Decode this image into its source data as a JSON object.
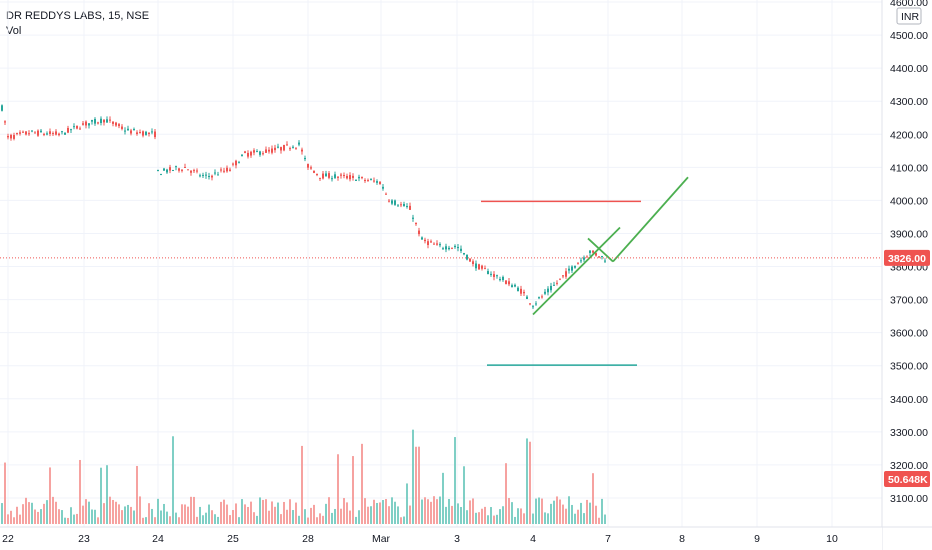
{
  "header": {
    "symbol_line": "DR REDDYS LABS, 15, NSE",
    "volume_label": "Vol"
  },
  "chart_data": {
    "type": "candlestick",
    "currency": "INR",
    "price_axis": {
      "ylim": [
        3040,
        4610
      ],
      "ticks": [
        {
          "value": 4600,
          "label": "4600.00"
        },
        {
          "value": 4500,
          "label": "4500.00"
        },
        {
          "value": 4400,
          "label": "4400.00"
        },
        {
          "value": 4300,
          "label": "4300.00"
        },
        {
          "value": 4200,
          "label": "4200.00"
        },
        {
          "value": 4100,
          "label": "4100.00"
        },
        {
          "value": 4000,
          "label": "4000.00"
        },
        {
          "value": 3900,
          "label": "3900.00"
        },
        {
          "value": 3800,
          "label": "3800.00"
        },
        {
          "value": 3700,
          "label": "3700.00"
        },
        {
          "value": 3600,
          "label": "3600.00"
        },
        {
          "value": 3500,
          "label": "3500.00"
        },
        {
          "value": 3400,
          "label": "3400.00"
        },
        {
          "value": 3300,
          "label": "3300.00"
        },
        {
          "value": 3200,
          "label": "3200.00"
        },
        {
          "value": 3100,
          "label": "3100.00"
        }
      ]
    },
    "x_axis": {
      "ticks": [
        "22",
        "23",
        "24",
        "25",
        "28",
        "Mar",
        "3",
        "4",
        "7",
        "8",
        "9",
        "10"
      ]
    },
    "last_price": {
      "value": 3826,
      "label": "3826.00"
    },
    "last_volume": {
      "label": "50.648K"
    },
    "colors": {
      "up": "#26a69a",
      "down": "#ef5350",
      "up_vol": "#7fcfc5",
      "down_vol": "#f6a2a0",
      "grid": "#f0f3fa"
    },
    "drawings": [
      {
        "type": "horizontal-segment",
        "color": "#ef5350",
        "price": 3997
      },
      {
        "type": "horizontal-segment",
        "color": "#26a69a",
        "price": 3502
      },
      {
        "type": "trendline",
        "color": "#4caf50",
        "from_price": 3655,
        "to_price": 3918
      },
      {
        "type": "trendline",
        "color": "#4caf50",
        "from_price": 3815,
        "to_price": 4070
      }
    ]
  }
}
